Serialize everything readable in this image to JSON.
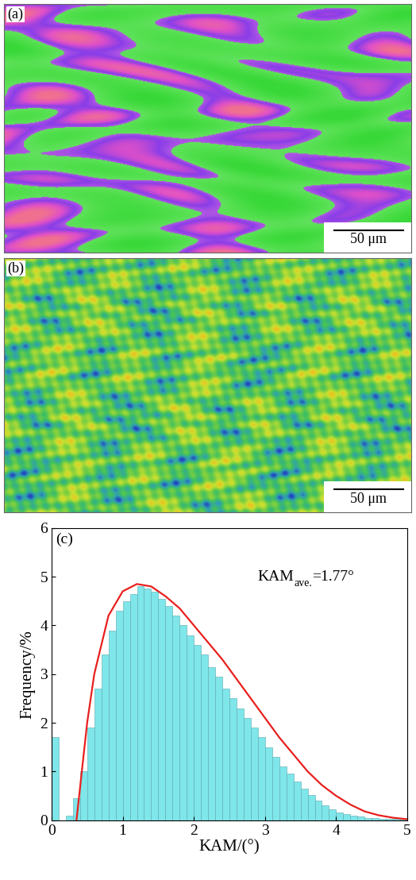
{
  "panels": [
    {
      "label": "(a)",
      "scale_bar": "50 μm"
    },
    {
      "label": "(b)",
      "scale_bar": "50 μm"
    }
  ],
  "chart_data": {
    "type": "histogram",
    "label": "(c)",
    "x_label": "KAM/(°)",
    "y_label": "Frequency/%",
    "bins": [
      0.0,
      0.1,
      0.2,
      0.3,
      0.4,
      0.5,
      0.6,
      0.7,
      0.8,
      0.9,
      1.0,
      1.1,
      1.2,
      1.3,
      1.4,
      1.5,
      1.6,
      1.7,
      1.8,
      1.9,
      2.0,
      2.1,
      2.2,
      2.3,
      2.4,
      2.5,
      2.6,
      2.7,
      2.8,
      2.9,
      3.0,
      3.1,
      3.2,
      3.3,
      3.4,
      3.5,
      3.6,
      3.7,
      3.8,
      3.9,
      4.0,
      4.1,
      4.2,
      4.3,
      4.4,
      4.5,
      4.6,
      4.7,
      4.8,
      4.9,
      5.0
    ],
    "values": [
      1.7,
      0.0,
      0.1,
      0.45,
      1.0,
      1.9,
      2.7,
      3.4,
      3.9,
      4.3,
      4.5,
      4.65,
      4.8,
      4.75,
      4.7,
      4.55,
      4.4,
      4.2,
      4.0,
      3.8,
      3.6,
      3.4,
      3.15,
      2.95,
      2.7,
      2.5,
      2.3,
      2.1,
      1.9,
      1.7,
      1.5,
      1.3,
      1.1,
      0.95,
      0.8,
      0.65,
      0.52,
      0.4,
      0.3,
      0.22,
      0.16,
      0.12,
      0.09,
      0.07,
      0.05,
      0.04,
      0.03,
      0.02,
      0.02,
      0.01
    ],
    "color": "#7fe6ea",
    "series": [
      {
        "type": "line",
        "color": "#e8201e",
        "x": [
          0.35,
          0.5,
          0.6,
          0.8,
          1.0,
          1.2,
          1.4,
          1.6,
          1.8,
          2.0,
          2.2,
          2.4,
          2.6,
          2.8,
          3.0,
          3.2,
          3.4,
          3.6,
          3.8,
          4.0,
          4.2,
          4.4,
          4.6,
          4.8,
          5.0
        ],
        "values": [
          0.0,
          2.0,
          3.0,
          4.2,
          4.7,
          4.85,
          4.8,
          4.6,
          4.35,
          4.0,
          3.65,
          3.3,
          2.9,
          2.5,
          2.1,
          1.7,
          1.35,
          1.0,
          0.72,
          0.5,
          0.32,
          0.18,
          0.1,
          0.05,
          0.02
        ]
      }
    ],
    "annotations": [
      {
        "text": "KAM",
        "subscript": "ave.",
        "rest": "=1.77°"
      }
    ],
    "xlim": [
      0,
      5
    ],
    "ylim": [
      0,
      6
    ],
    "xticks": [
      0,
      1,
      2,
      3,
      4,
      5
    ],
    "yticks": [
      0,
      1,
      2,
      3,
      4,
      5,
      6
    ],
    "grid": false
  }
}
